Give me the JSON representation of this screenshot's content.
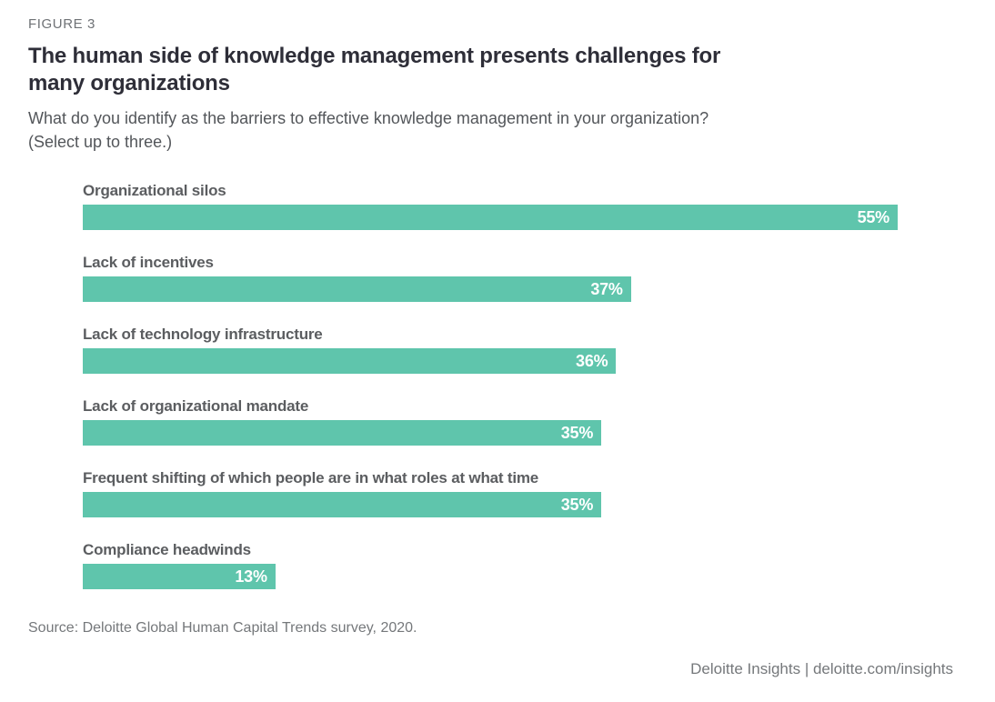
{
  "header": {
    "figure_label": "FIGURE 3",
    "title_line1": "The human side of knowledge management presents challenges for",
    "title_line2": "many organizations",
    "subtitle_line1": "What do you identify as the barriers to effective knowledge management in your organization?",
    "subtitle_line2": "(Select up to three.)"
  },
  "chart_data": {
    "type": "bar",
    "orientation": "horizontal",
    "title": "The human side of knowledge management presents challenges for many organizations",
    "question": "What do you identify as the barriers to effective knowledge management in your organization? (Select up to three.)",
    "categories": [
      "Organizational silos",
      "Lack of incentives",
      "Lack of technology infrastructure",
      "Lack of organizational mandate",
      "Frequent shifting of which people are in what roles at what time",
      "Compliance headwinds"
    ],
    "values": [
      55,
      37,
      36,
      35,
      35,
      13
    ],
    "value_labels": [
      "55%",
      "37%",
      "36%",
      "35%",
      "35%",
      "13%"
    ],
    "unit": "percent",
    "xlim": [
      0,
      55
    ],
    "bar_color": "#5FC5AC",
    "value_label_position": "inside-end",
    "grid": false,
    "legend": false,
    "axes_visible": false
  },
  "footer": {
    "source": "Source: Deloitte Global Human Capital Trends survey, 2020.",
    "branding": "Deloitte Insights | deloitte.com/insights"
  }
}
